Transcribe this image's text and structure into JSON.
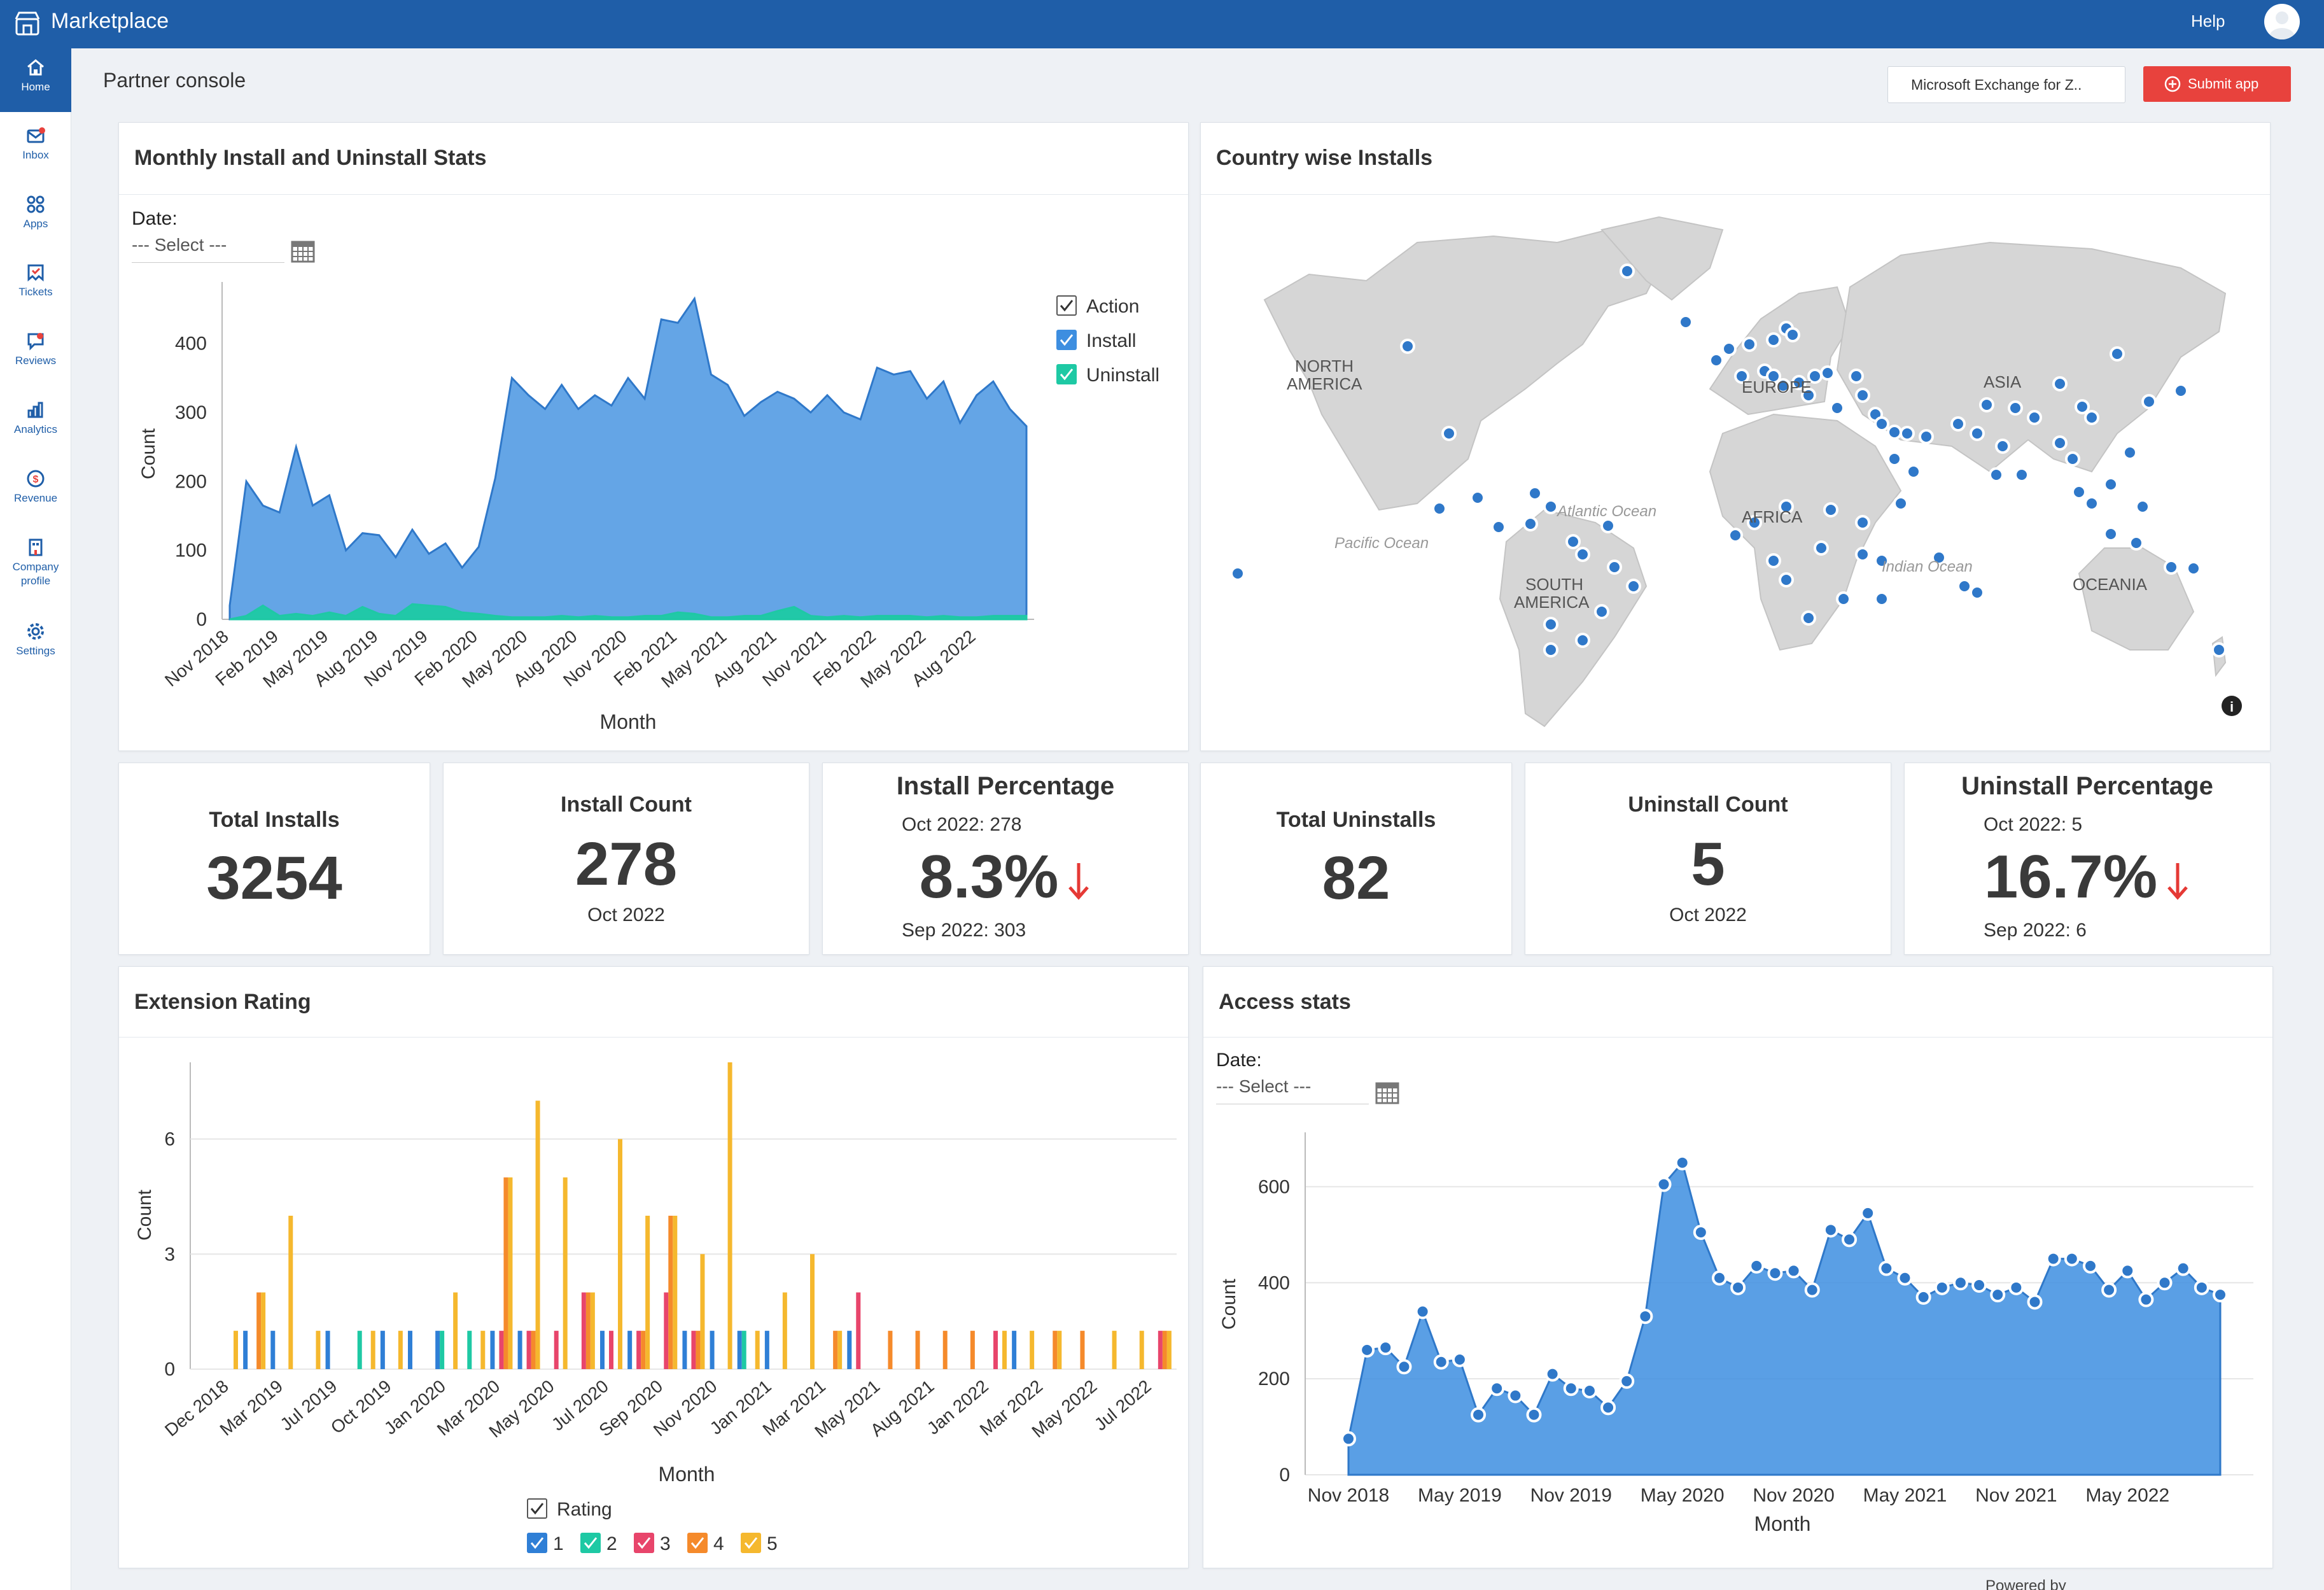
{
  "app": {
    "title": "Marketplace",
    "help": "Help"
  },
  "sidebar": {
    "items": [
      {
        "label": "Home",
        "icon": "home-icon",
        "active": true
      },
      {
        "label": "Inbox",
        "icon": "inbox-icon"
      },
      {
        "label": "Apps",
        "icon": "apps-icon"
      },
      {
        "label": "Tickets",
        "icon": "tickets-icon"
      },
      {
        "label": "Reviews",
        "icon": "reviews-icon"
      },
      {
        "label": "Analytics",
        "icon": "analytics-icon"
      },
      {
        "label": "Revenue",
        "icon": "revenue-icon"
      },
      {
        "label": "Company",
        "label2": "profile",
        "icon": "company-icon"
      },
      {
        "label": "Settings",
        "icon": "settings-icon"
      }
    ]
  },
  "header": {
    "page_title": "Partner console",
    "extension_select": "Microsoft Exchange for Z..",
    "submit_label": "Submit app"
  },
  "monthly": {
    "title": "Monthly Install and Uninstall Stats",
    "date_label": "Date:",
    "date_placeholder": "--- Select ---"
  },
  "country": {
    "title": "Country wise Installs",
    "labels": [
      "NORTH",
      "AMERICA",
      "SOUTH",
      "AMERICA",
      "EUROPE",
      "AFRICA",
      "ASIA",
      "OCEANIA",
      "Atlantic Ocean",
      "Pacific Ocean",
      "Indian Ocean"
    ]
  },
  "stats": {
    "total_installs_label": "Total Installs",
    "total_installs": "3254",
    "install_count_label": "Install Count",
    "install_count": "278",
    "install_count_period": "Oct 2022",
    "install_pct_label": "Install Percentage",
    "install_pct_current": "Oct 2022: 278",
    "install_pct": "8.3%",
    "install_pct_prev": "Sep 2022: 303",
    "total_uninstalls_label": "Total Uninstalls",
    "total_uninstalls": "82",
    "uninstall_count_label": "Uninstall Count",
    "uninstall_count": "5",
    "uninstall_count_period": "Oct 2022",
    "uninstall_pct_label": "Uninstall Percentage",
    "uninstall_pct_current": "Oct 2022: 5",
    "uninstall_pct": "16.7%",
    "uninstall_pct_prev": "Sep 2022: 6",
    "trend": "down",
    "trend_color": "#e53935"
  },
  "rating": {
    "title": "Extension Rating"
  },
  "access": {
    "title": "Access stats",
    "date_label": "Date:",
    "date_placeholder": "--- Select ---"
  },
  "footer": {
    "powered_by": "Powered by"
  },
  "colors": {
    "brand": "#1f5ea8",
    "install": "#3d8ee0",
    "uninstall": "#1ec9a4",
    "rating_1": "#2f7fd6",
    "rating_2": "#1ec9a4",
    "rating_3": "#e8456b",
    "rating_4": "#f58a2b",
    "rating_5": "#f5b82e",
    "submit": "#e8423d"
  },
  "chart_data": [
    {
      "type": "area",
      "id": "monthly",
      "xlabel": "Month",
      "ylabel": "Count",
      "ylim": [
        0,
        480
      ],
      "yticks": [
        0,
        100,
        200,
        300,
        400
      ],
      "legend_title": "Action",
      "tick_labels": [
        "Nov 2018",
        "Feb 2019",
        "May 2019",
        "Aug 2019",
        "Nov 2019",
        "Feb 2020",
        "May 2020",
        "Aug 2020",
        "Nov 2020",
        "Feb 2021",
        "May 2021",
        "Aug 2021",
        "Nov 2021",
        "Feb 2022",
        "May 2022",
        "Aug 2022"
      ],
      "tick_index": [
        0,
        3,
        6,
        9,
        12,
        15,
        18,
        21,
        24,
        27,
        30,
        33,
        36,
        39,
        42,
        45
      ],
      "series": [
        {
          "name": "Install",
          "values": [
            20,
            200,
            165,
            155,
            250,
            165,
            180,
            100,
            125,
            122,
            90,
            130,
            95,
            110,
            75,
            105,
            205,
            350,
            325,
            305,
            340,
            305,
            325,
            310,
            350,
            320,
            435,
            430,
            465,
            355,
            340,
            295,
            315,
            330,
            320,
            300,
            325,
            300,
            290,
            365,
            355,
            360,
            320,
            345,
            285,
            325,
            345,
            305,
            280
          ]
        },
        {
          "name": "Uninstall",
          "values": [
            0,
            5,
            20,
            5,
            8,
            5,
            10,
            5,
            18,
            8,
            5,
            22,
            20,
            18,
            10,
            8,
            5,
            3,
            3,
            3,
            5,
            3,
            5,
            3,
            3,
            5,
            5,
            10,
            8,
            3,
            3,
            5,
            5,
            12,
            18,
            5,
            3,
            5,
            3,
            5,
            5,
            5,
            3,
            5,
            3,
            3,
            5,
            5,
            5
          ]
        }
      ]
    },
    {
      "type": "bar",
      "id": "rating",
      "xlabel": "Month",
      "ylabel": "Count",
      "ylim": [
        0,
        8
      ],
      "yticks": [
        0,
        3,
        6
      ],
      "legend_title": "Rating",
      "tick_labels": [
        "Dec 2018",
        "Mar 2019",
        "Jul 2019",
        "Oct 2019",
        "Jan 2020",
        "Mar 2020",
        "May 2020",
        "Jul 2020",
        "Sep 2020",
        "Nov 2020",
        "Jan 2021",
        "Mar 2021",
        "May 2021",
        "Aug 2021",
        "Jan 2022",
        "Mar 2022",
        "May 2022",
        "Jul 2022"
      ],
      "series": [
        {
          "name": "1",
          "values": [
            0,
            1,
            1,
            0,
            1,
            0,
            1,
            1,
            1,
            0,
            1,
            1,
            0,
            0,
            1,
            1,
            0,
            1,
            1,
            1,
            1,
            0,
            0,
            1,
            0,
            0,
            0,
            0,
            0,
            1,
            0,
            0,
            0,
            0,
            0
          ]
        },
        {
          "name": "2",
          "values": [
            0,
            0,
            0,
            0,
            0,
            1,
            0,
            0,
            1,
            1,
            0,
            0,
            0,
            0,
            0,
            0,
            0,
            0,
            0,
            1,
            0,
            0,
            0,
            0,
            0,
            0,
            0,
            0,
            0,
            0,
            0,
            0,
            0,
            0,
            0
          ]
        },
        {
          "name": "3",
          "values": [
            0,
            0,
            0,
            0,
            0,
            0,
            0,
            0,
            0,
            0,
            1,
            1,
            1,
            2,
            1,
            1,
            2,
            1,
            0,
            0,
            0,
            0,
            0,
            2,
            0,
            0,
            0,
            0,
            1,
            0,
            0,
            0,
            0,
            0,
            1
          ]
        },
        {
          "name": "4",
          "values": [
            0,
            2,
            0,
            0,
            0,
            0,
            0,
            0,
            0,
            0,
            5,
            1,
            0,
            2,
            0,
            1,
            4,
            1,
            0,
            0,
            0,
            0,
            1,
            0,
            1,
            1,
            1,
            1,
            0,
            0,
            1,
            1,
            0,
            0,
            1
          ]
        },
        {
          "name": "5",
          "values": [
            1,
            2,
            4,
            1,
            0,
            1,
            1,
            0,
            2,
            1,
            5,
            7,
            5,
            2,
            6,
            4,
            4,
            3,
            8,
            1,
            2,
            3,
            1,
            0,
            0,
            0,
            0,
            0,
            1,
            1,
            1,
            0,
            1,
            1,
            1
          ]
        }
      ]
    },
    {
      "type": "area",
      "id": "access",
      "xlabel": "Month",
      "ylabel": "Count",
      "ylim": [
        0,
        700
      ],
      "yticks": [
        0,
        200,
        400,
        600
      ],
      "tick_labels": [
        "Nov 2018",
        "May 2019",
        "Nov 2019",
        "May 2020",
        "Nov 2020",
        "May 2021",
        "Nov 2021",
        "May 2022"
      ],
      "tick_index": [
        0,
        6,
        12,
        18,
        24,
        30,
        36,
        42
      ],
      "series": [
        {
          "name": "Access",
          "values": [
            75,
            260,
            265,
            225,
            340,
            235,
            240,
            125,
            180,
            165,
            125,
            210,
            180,
            175,
            140,
            195,
            330,
            605,
            650,
            505,
            410,
            390,
            435,
            420,
            425,
            385,
            510,
            490,
            545,
            430,
            410,
            370,
            390,
            400,
            395,
            375,
            390,
            360,
            450,
            450,
            435,
            385,
            425,
            365,
            400,
            430,
            390,
            375
          ]
        }
      ]
    }
  ]
}
